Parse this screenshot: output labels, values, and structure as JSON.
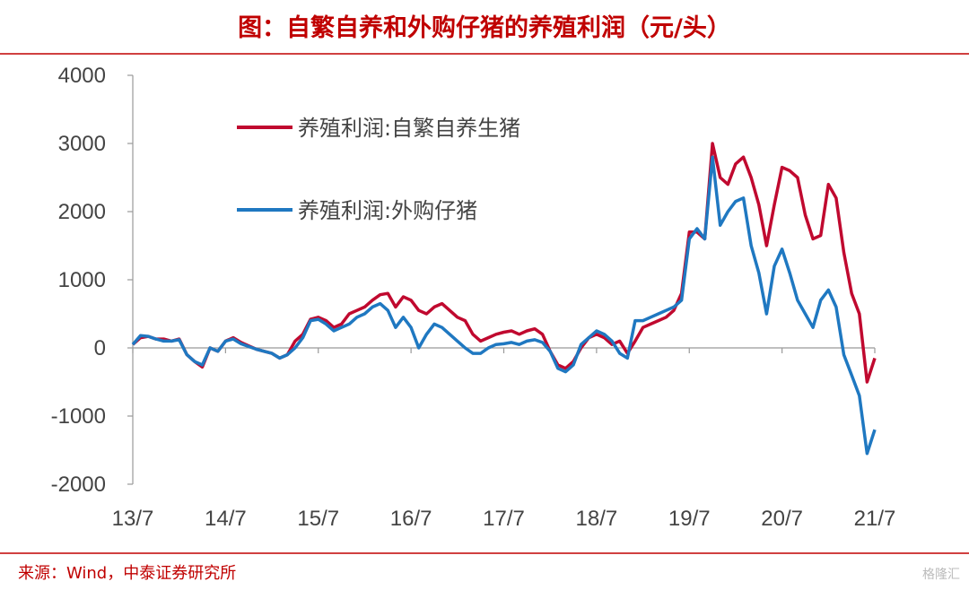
{
  "chart_data": {
    "type": "line",
    "title": "图：自繁自养和外购仔猪的养殖利润（元/头）",
    "source": "来源：Wind，中泰证券研究所",
    "watermark": "格隆汇",
    "x": [
      "13/7",
      "13/8",
      "13/9",
      "13/10",
      "13/11",
      "13/12",
      "14/1",
      "14/2",
      "14/3",
      "14/4",
      "14/5",
      "14/6",
      "14/7",
      "14/8",
      "14/9",
      "14/10",
      "14/11",
      "14/12",
      "15/1",
      "15/2",
      "15/3",
      "15/4",
      "15/5",
      "15/6",
      "15/7",
      "15/8",
      "15/9",
      "15/10",
      "15/11",
      "15/12",
      "16/1",
      "16/2",
      "16/3",
      "16/4",
      "16/5",
      "16/6",
      "16/7",
      "16/8",
      "16/9",
      "16/10",
      "16/11",
      "16/12",
      "17/1",
      "17/2",
      "17/3",
      "17/4",
      "17/5",
      "17/6",
      "17/7",
      "17/8",
      "17/9",
      "17/10",
      "17/11",
      "17/12",
      "18/1",
      "18/2",
      "18/3",
      "18/4",
      "18/5",
      "18/6",
      "18/7",
      "18/8",
      "18/9",
      "18/10",
      "18/11",
      "18/12",
      "19/1",
      "19/2",
      "19/3",
      "19/4",
      "19/5",
      "19/6",
      "19/7",
      "19/8",
      "19/9",
      "19/10",
      "19/11",
      "19/12",
      "20/1",
      "20/2",
      "20/3",
      "20/4",
      "20/5",
      "20/6",
      "20/7",
      "20/8",
      "20/9",
      "20/10",
      "20/11",
      "20/12",
      "21/1",
      "21/2",
      "21/3",
      "21/4",
      "21/5",
      "21/6",
      "21/7"
    ],
    "series": [
      {
        "name": "养殖利润:自繁自养生猪",
        "color": "#c0092f",
        "values": [
          50,
          150,
          170,
          130,
          130,
          100,
          130,
          -100,
          -200,
          -280,
          0,
          -50,
          100,
          150,
          80,
          30,
          -20,
          -50,
          -80,
          -150,
          -100,
          100,
          200,
          420,
          450,
          400,
          300,
          350,
          500,
          550,
          600,
          700,
          780,
          800,
          600,
          750,
          700,
          550,
          500,
          600,
          650,
          550,
          450,
          400,
          200,
          100,
          150,
          200,
          230,
          250,
          200,
          250,
          280,
          200,
          -50,
          -250,
          -300,
          -200,
          0,
          150,
          200,
          150,
          50,
          100,
          -80,
          100,
          300,
          350,
          400,
          450,
          550,
          800,
          1700,
          1700,
          1600,
          3000,
          2500,
          2400,
          2700,
          2800,
          2500,
          2100,
          1500,
          2100,
          2650,
          2600,
          2500,
          1950,
          1600,
          1650,
          2400,
          2200,
          1400,
          800,
          500,
          -500,
          -150
        ]
      },
      {
        "name": "养殖利润:外购仔猪",
        "color": "#1f78c1",
        "values": [
          50,
          180,
          170,
          130,
          100,
          100,
          120,
          -100,
          -200,
          -250,
          0,
          -50,
          100,
          130,
          60,
          20,
          -20,
          -50,
          -80,
          -150,
          -100,
          0,
          150,
          400,
          420,
          350,
          250,
          300,
          350,
          450,
          500,
          600,
          650,
          550,
          300,
          450,
          300,
          0,
          200,
          350,
          300,
          200,
          100,
          0,
          -80,
          -80,
          0,
          50,
          60,
          80,
          50,
          100,
          120,
          80,
          -50,
          -300,
          -350,
          -250,
          50,
          150,
          250,
          200,
          100,
          -80,
          -150,
          400,
          400,
          450,
          500,
          550,
          600,
          700,
          1600,
          1750,
          1600,
          2800,
          1800,
          2000,
          2150,
          2200,
          1500,
          1100,
          500,
          1200,
          1450,
          1100,
          700,
          500,
          300,
          700,
          850,
          600,
          -100,
          -400,
          -700,
          -1550,
          -1200
        ]
      }
    ],
    "xticks": [
      "13/7",
      "14/7",
      "15/7",
      "16/7",
      "17/7",
      "18/7",
      "19/7",
      "20/7",
      "21/7"
    ],
    "ylim": [
      -2000,
      4000
    ],
    "yticks": [
      -2000,
      -1000,
      0,
      1000,
      2000,
      3000,
      4000
    ],
    "grid": false,
    "legend": "upper left"
  }
}
